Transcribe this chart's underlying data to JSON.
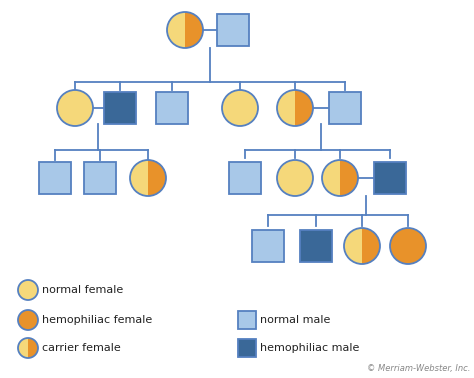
{
  "colors": {
    "yellow": "#F5D87A",
    "orange": "#E8922A",
    "light_blue": "#A8C8E8",
    "dark_blue": "#3A6898",
    "outline": "#5580C0",
    "line": "#5580C0",
    "bg": "#FFFFFF"
  },
  "legend": {
    "normal_female": "normal female",
    "hemophiliac_female": "hemophiliac female",
    "carrier_female": "carrier female",
    "normal_male": "normal male",
    "hemophiliac_male": "hemophiliac male"
  },
  "copyright": "© Merriam-Webster, Inc."
}
